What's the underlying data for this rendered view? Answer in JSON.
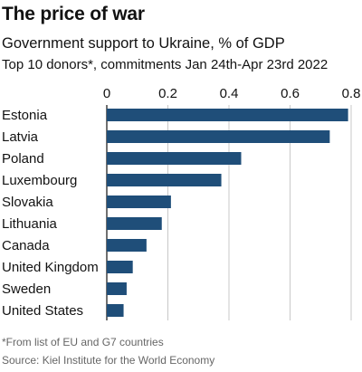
{
  "header": {
    "title": "The price of war",
    "subtitle": "Government support to Ukraine, % of GDP",
    "subsubtitle": "Top 10 donors*, commitments Jan 24th-Apr 23rd 2022"
  },
  "footer": {
    "footnote": "*From list of EU and G7 countries",
    "source": "Source: Kiel Institute for the World Economy"
  },
  "colors": {
    "bar": "#1f4e79",
    "grid": "#c8c8c8",
    "axis": "#121212",
    "text": "#121212"
  },
  "chart_data": {
    "type": "bar",
    "orientation": "horizontal",
    "categories": [
      "Estonia",
      "Latvia",
      "Poland",
      "Luxembourg",
      "Slovakia",
      "Lithuania",
      "Canada",
      "United Kingdom",
      "Sweden",
      "United States"
    ],
    "values": [
      0.79,
      0.73,
      0.44,
      0.375,
      0.21,
      0.18,
      0.13,
      0.085,
      0.065,
      0.055
    ],
    "xlim": [
      0,
      0.8
    ],
    "xticks": [
      0,
      0.2,
      0.4,
      0.6,
      0.8
    ],
    "xtick_labels": [
      "0",
      "0.2",
      "0.4",
      "0.6",
      "0.8"
    ],
    "axis_position": "top",
    "grid": true
  }
}
